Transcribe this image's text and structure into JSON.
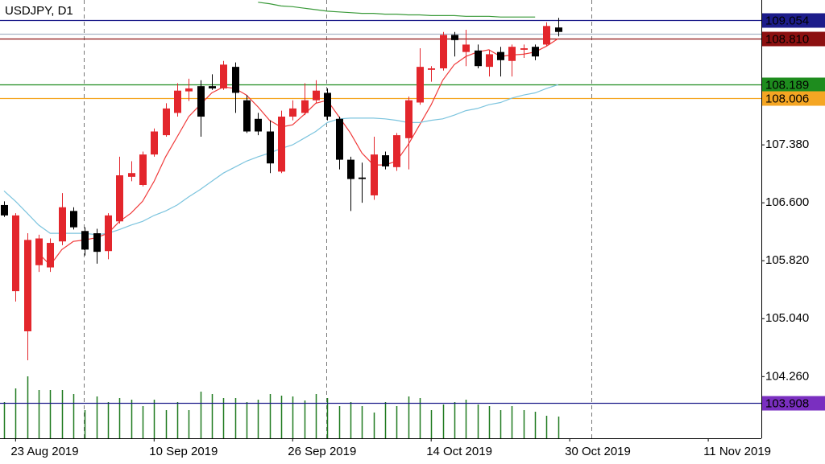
{
  "chart_data": {
    "type": "candlestick",
    "title": "USDJPY, D1",
    "open": [
      106.57,
      105.41,
      104.87,
      105.76,
      105.73,
      106.08,
      106.49,
      106.22,
      106.19,
      105.95,
      106.35,
      106.95,
      106.84,
      107.25,
      107.51,
      107.81,
      108.1,
      108.17,
      108.17,
      108.14,
      108.43,
      107.98,
      107.73,
      107.56,
      107.02,
      107.76,
      107.81,
      107.98,
      108.08,
      107.73,
      107.18,
      106.94,
      106.7,
      107.24,
      107.08,
      107.47,
      107.95,
      108.39,
      108.41,
      108.86,
      108.63,
      108.65,
      108.43,
      108.63,
      108.51,
      108.66,
      108.7,
      108.73,
      108.96
    ],
    "high": [
      106.62,
      106.46,
      106.19,
      106.17,
      106.12,
      106.73,
      106.54,
      106.27,
      106.25,
      106.46,
      107.22,
      107.16,
      107.29,
      107.6,
      107.94,
      108.21,
      108.27,
      108.25,
      108.33,
      108.51,
      108.49,
      108.05,
      107.81,
      107.71,
      107.84,
      107.98,
      108.21,
      108.25,
      108.14,
      107.76,
      107.22,
      107.14,
      107.49,
      107.29,
      107.54,
      108.03,
      108.68,
      108.44,
      108.9,
      108.9,
      108.93,
      108.73,
      108.66,
      108.7,
      108.73,
      108.73,
      108.73,
      109.03,
      109.09
    ],
    "low": [
      106.41,
      105.27,
      104.48,
      105.67,
      105.67,
      106.03,
      106.24,
      105.89,
      105.78,
      105.84,
      106.32,
      106.89,
      106.82,
      107.22,
      107.49,
      107.76,
      107.97,
      107.49,
      108.12,
      108.12,
      107.81,
      107.54,
      107.51,
      107.0,
      107.0,
      107.71,
      107.78,
      107.94,
      107.71,
      107.05,
      106.49,
      106.6,
      106.64,
      107.05,
      107.03,
      107.05,
      107.92,
      108.23,
      108.38,
      108.57,
      108.44,
      108.41,
      108.3,
      108.3,
      108.3,
      108.55,
      108.52,
      108.71,
      108.84
    ],
    "close": [
      106.43,
      106.43,
      106.1,
      106.12,
      106.06,
      106.54,
      106.27,
      105.97,
      105.94,
      106.43,
      106.97,
      107.0,
      107.25,
      107.56,
      107.87,
      108.11,
      108.14,
      107.76,
      108.14,
      108.46,
      108.08,
      107.56,
      107.56,
      107.13,
      107.76,
      107.87,
      107.98,
      108.11,
      107.76,
      107.18,
      106.92,
      106.92,
      107.25,
      107.09,
      107.51,
      107.98,
      108.43,
      108.41,
      108.86,
      108.79,
      108.73,
      108.44,
      108.6,
      108.52,
      108.7,
      108.68,
      108.57,
      108.98,
      108.9
    ],
    "up_color": "#e3262c",
    "down_color": "#000000",
    "moving_averages": [
      {
        "color": "#f03a3a",
        "values": [
          null,
          null,
          null,
          105.92,
          105.76,
          105.97,
          106.08,
          106.1,
          106.13,
          106.19,
          106.35,
          106.46,
          106.62,
          106.89,
          107.22,
          107.49,
          107.76,
          107.92,
          108.08,
          108.16,
          108.14,
          108.05,
          107.89,
          107.71,
          107.62,
          107.65,
          107.79,
          107.94,
          107.98,
          107.76,
          107.54,
          107.27,
          107.11,
          107.11,
          107.16,
          107.38,
          107.65,
          107.92,
          108.25,
          108.46,
          108.57,
          108.63,
          108.66,
          108.57,
          108.59,
          108.6,
          108.63,
          108.71,
          108.81
        ]
      },
      {
        "color": "#7cc4de",
        "values": [
          106.76,
          106.62,
          106.46,
          106.3,
          106.19,
          106.19,
          106.19,
          106.19,
          106.17,
          106.19,
          106.24,
          106.3,
          106.35,
          106.43,
          106.49,
          106.57,
          106.68,
          106.78,
          106.89,
          107.0,
          107.08,
          107.16,
          107.22,
          107.27,
          107.33,
          107.38,
          107.47,
          107.56,
          107.68,
          107.73,
          107.74,
          107.74,
          107.74,
          107.73,
          107.71,
          107.68,
          107.68,
          107.71,
          107.73,
          107.78,
          107.84,
          107.87,
          107.92,
          107.95,
          108.01,
          108.05,
          108.08,
          108.14,
          108.19
        ]
      },
      {
        "color": "#3a9a3a",
        "values": [
          null,
          null,
          null,
          null,
          null,
          null,
          null,
          null,
          null,
          null,
          null,
          null,
          null,
          null,
          null,
          null,
          null,
          null,
          null,
          null,
          null,
          null,
          109.3,
          109.28,
          109.25,
          109.24,
          109.22,
          109.2,
          109.18,
          109.17,
          109.16,
          109.15,
          109.15,
          109.14,
          109.14,
          109.13,
          109.13,
          109.12,
          109.12,
          109.12,
          109.11,
          109.11,
          109.11,
          109.1,
          109.1,
          109.1,
          109.1,
          null,
          null
        ]
      }
    ],
    "volume": [
      45,
      62,
      77,
      60,
      60,
      60,
      55,
      35,
      52,
      45,
      50,
      48,
      40,
      48,
      35,
      45,
      35,
      58,
      55,
      50,
      50,
      45,
      48,
      55,
      53,
      52,
      47,
      55,
      50,
      40,
      45,
      40,
      32,
      45,
      40,
      52,
      50,
      35,
      42,
      45,
      48,
      42,
      40,
      35,
      40,
      35,
      33,
      28,
      27
    ],
    "volume_color": "#1f7a1f",
    "levels": [
      {
        "value": 109.054,
        "label": "109.054",
        "line_color": "#1c1c8a",
        "label_color": "#1c1c8a"
      },
      {
        "value": 108.87,
        "line_color": "#a8b4c8"
      },
      {
        "value": 108.81,
        "label": "108.810",
        "line_color": "#8c1010",
        "label_color": "#8c1010"
      },
      {
        "value": 108.189,
        "label": "108.189",
        "line_color": "#1e8c1e",
        "label_color": "#1e8c1e"
      },
      {
        "value": 108.006,
        "label": "108.006",
        "line_color": "#f5a623",
        "label_color": "#f5a623"
      },
      {
        "value": 103.908,
        "label": "103.908",
        "line_color": "#1c1c8a",
        "label_color": "#7a2fc0"
      }
    ],
    "separators": [
      7,
      28,
      51
    ],
    "xlim": [
      -0.35,
      65.6
    ],
    "ylim": [
      103.43,
      109.33
    ],
    "yticks": [
      {
        "value": 107.38,
        "label": "107.380"
      },
      {
        "value": 106.6,
        "label": "106.600"
      },
      {
        "value": 105.82,
        "label": "105.820"
      },
      {
        "value": 105.04,
        "label": "105.040"
      },
      {
        "value": 104.26,
        "label": "104.260"
      }
    ],
    "xticks": [
      {
        "value": 1,
        "label": "23 Aug 2019"
      },
      {
        "value": 13,
        "label": "10 Sep 2019"
      },
      {
        "value": 25,
        "label": "26 Sep 2019"
      },
      {
        "value": 37,
        "label": "14 Oct 2019"
      },
      {
        "value": 49,
        "label": "30 Oct 2019"
      },
      {
        "value": 61,
        "label": "11 Nov 2019"
      }
    ]
  }
}
